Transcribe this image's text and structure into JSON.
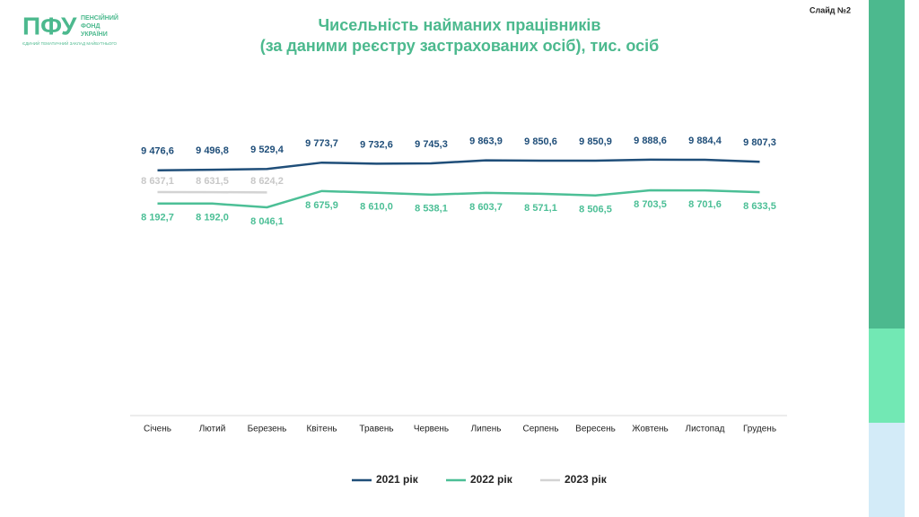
{
  "header": {
    "logo_abbr": "ПФУ",
    "logo_lines": [
      "ПЕНСІЙНИЙ",
      "ФОНД",
      "УКРАЇНИ"
    ],
    "tagline": "ЄДИНИЙ ТЕМАТИЧНИЙ ЗАКЛАД МАЙБУТНЬОГО",
    "slide": "Слайд №2"
  },
  "chart_data": {
    "type": "line",
    "title": "Чисельність найманих працівників",
    "subtitle": "(за даними реєстру застрахованих осіб), тис. осіб",
    "categories": [
      "Січень",
      "Лютий",
      "Березень",
      "Квітень",
      "Травень",
      "Червень",
      "Липень",
      "Серпень",
      "Вересень",
      "Жовтень",
      "Листопад",
      "Грудень"
    ],
    "ylim": [
      0,
      12000
    ],
    "legend": "bottom",
    "series": [
      {
        "name": "2021 рік",
        "color": "#1f4e79",
        "values": [
          9476.6,
          9496.8,
          9529.4,
          9773.7,
          9732.6,
          9745.3,
          9863.9,
          9850.6,
          9850.9,
          9888.6,
          9884.4,
          9807.3
        ],
        "value_labels": [
          "9 476,6",
          "9 496,8",
          "9 529,4",
          "9 773,7",
          "9 732,6",
          "9 745,3",
          "9 863,9",
          "9 850,6",
          "9 850,9",
          "9 888,6",
          "9 884,4",
          "9 807,3"
        ]
      },
      {
        "name": "2022 рік",
        "color": "#4cbf96",
        "values": [
          8192.7,
          8192.0,
          8046.1,
          8675.9,
          8610.0,
          8538.1,
          8603.7,
          8571.1,
          8506.5,
          8703.5,
          8701.6,
          8633.5
        ],
        "value_labels": [
          "8 192,7",
          "8 192,0",
          "8 046,1",
          "8 675,9",
          "8 610,0",
          "8 538,1",
          "8 603,7",
          "8 571,1",
          "8 506,5",
          "8 703,5",
          "8 701,6",
          "8 633,5"
        ]
      },
      {
        "name": "2023 рік",
        "color": "#d3d3d3",
        "values": [
          8637.1,
          8631.5,
          8624.2,
          null,
          null,
          null,
          null,
          null,
          null,
          null,
          null,
          null
        ],
        "value_labels": [
          "8 637,1",
          "8 631,5",
          "8 624,2",
          null,
          null,
          null,
          null,
          null,
          null,
          null,
          null,
          null
        ]
      }
    ]
  }
}
